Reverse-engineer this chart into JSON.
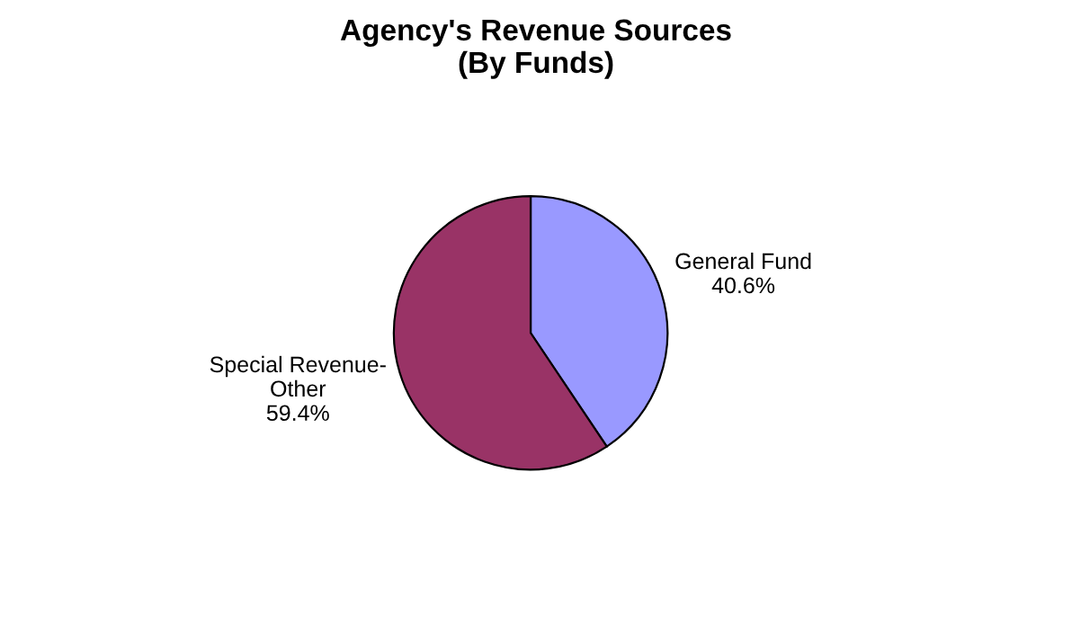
{
  "chart_data": {
    "type": "pie",
    "title": "Agency's Revenue Sources\n(By Funds)",
    "categories": [
      "General Fund",
      "Special Revenue-\nOther"
    ],
    "values": [
      40.6,
      59.4
    ],
    "colors": [
      "#9999ff",
      "#993366"
    ],
    "value_labels": [
      "40.6%",
      "59.4%"
    ]
  }
}
